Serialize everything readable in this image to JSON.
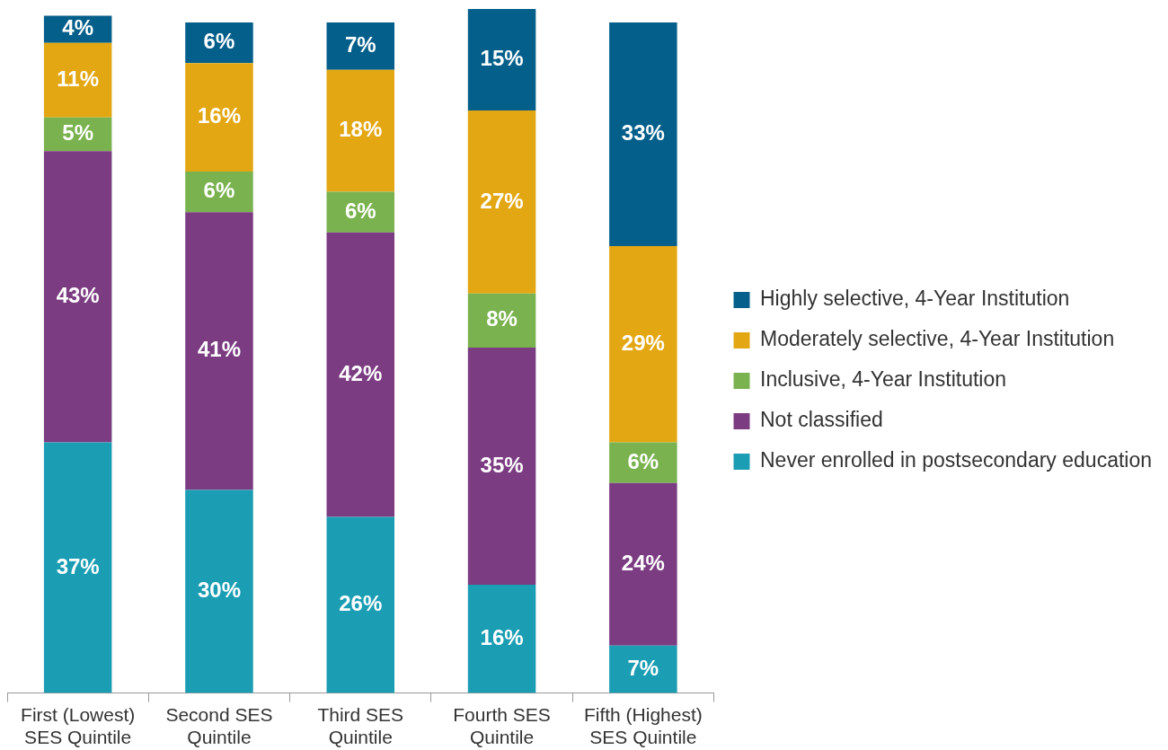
{
  "chart_data": {
    "type": "bar",
    "stacked": true,
    "legend": "right",
    "grid": false,
    "categories": [
      "First (Lowest) SES Quintile",
      "Second SES Quintile",
      "Third SES Quintile",
      "Fourth SES Quintile",
      "Fifth (Highest) SES Quintile"
    ],
    "series": [
      {
        "name": "Never enrolled in postsecondary education",
        "color": "#1b9db3",
        "values": [
          37,
          30,
          26,
          16,
          7
        ],
        "value_labels": [
          "37%",
          "30%",
          "26%",
          "16%",
          "7%"
        ]
      },
      {
        "name": "Not classified",
        "color": "#7b3c82",
        "values": [
          43,
          41,
          42,
          35,
          24
        ],
        "value_labels": [
          "43%",
          "41%",
          "42%",
          "35%",
          "24%"
        ]
      },
      {
        "name": "Inclusive, 4-Year Institution",
        "color": "#7ab24f",
        "values": [
          5,
          6,
          6,
          8,
          6
        ],
        "value_labels": [
          "5%",
          "6%",
          "6%",
          "8%",
          "6%"
        ]
      },
      {
        "name": "Moderately selective, 4-Year Institution",
        "color": "#e3a713",
        "values": [
          11,
          16,
          18,
          27,
          29
        ],
        "value_labels": [
          "11%",
          "16%",
          "18%",
          "27%",
          "29%"
        ]
      },
      {
        "name": "Highly selective, 4-Year Institution",
        "color": "#045f8a",
        "values": [
          4,
          6,
          7,
          15,
          33
        ],
        "value_labels": [
          "4%",
          "6%",
          "7%",
          "15%",
          "33%"
        ]
      }
    ]
  }
}
